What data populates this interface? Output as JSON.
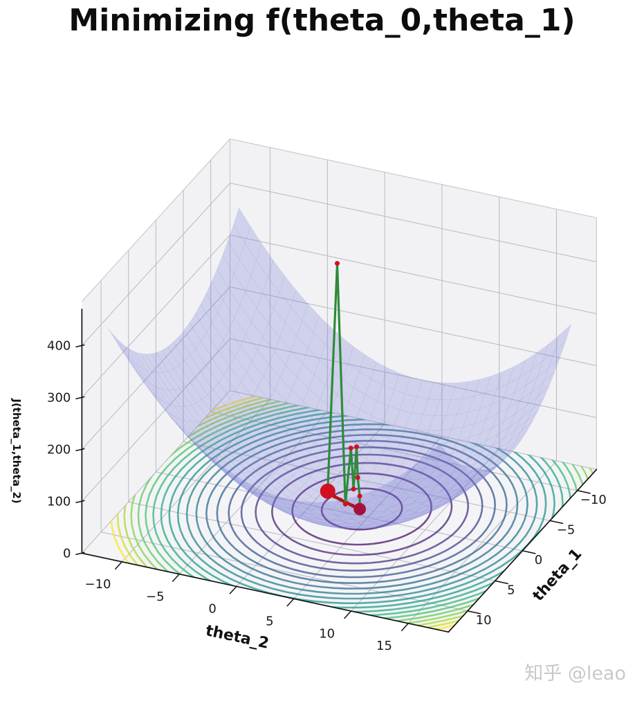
{
  "title": "Minimizing f(theta_0,theta_1)",
  "watermark": "知乎 @leao",
  "chart_data": {
    "type": "3d_surface",
    "title": "Minimizing f(theta_0,theta_1)",
    "xlabel": "theta_2",
    "ylabel": "theta_1",
    "zlabel": "J(theta_1,theta_2)",
    "x_ticks": [
      -10,
      -5,
      0,
      5,
      10,
      15
    ],
    "y_ticks": [
      -10,
      -5,
      0,
      5,
      10
    ],
    "z_ticks": [
      0,
      100,
      200,
      300,
      400
    ],
    "x_range": [
      -13.5,
      18.5
    ],
    "y_range": [
      -13.5,
      13.5
    ],
    "z_range": [
      0,
      485
    ],
    "grid": true,
    "legend": "none",
    "surface": {
      "fitted_function": "J ≈ (theta_2 - 4)^2 + (theta_1 + 1)^2",
      "minimum": {
        "theta_2": 4,
        "theta_1": -1,
        "J": 0
      },
      "domain_theta_2": [
        -12,
        17
      ],
      "domain_theta_1": [
        -12,
        12
      ],
      "mesh_step": 1,
      "fill_color": "#6f72d0",
      "fill_opacity": 0.26
    },
    "contours": {
      "center": {
        "theta_2": 4,
        "theta_1": -1
      },
      "levels": [
        10,
        30,
        50,
        70,
        90,
        110,
        130,
        150,
        170,
        190,
        210,
        230,
        250,
        270,
        290,
        310,
        330,
        350,
        370,
        390
      ],
      "colors": [
        "#440154",
        "#481467",
        "#482576",
        "#453781",
        "#3f4889",
        "#39568c",
        "#33638d",
        "#2e6f8e",
        "#2a7b8e",
        "#25878e",
        "#21938b",
        "#1f9e88",
        "#27aa81",
        "#35b778",
        "#4ac16d",
        "#64cb5e",
        "#84d44b",
        "#a8db34",
        "#cfe11c",
        "#fde725"
      ],
      "line_width": 2.6,
      "opacity": 0.75
    },
    "descent_path": {
      "color": "#2e8b3a",
      "line_width": 3.2,
      "marker_color": "#cf1122",
      "marker_radius": 3.5,
      "start_marker_radius": 11,
      "points": [
        [
          0.8,
          -1.45,
          14
        ],
        [
          1.74,
          -1.22,
          460
        ],
        [
          2.6,
          -0.91,
          4
        ],
        [
          3.01,
          -1.06,
          112
        ],
        [
          3.17,
          -1.21,
          32
        ],
        [
          3.41,
          -1.27,
          114
        ],
        [
          3.47,
          -1.36,
          54
        ],
        [
          3.6,
          -1.44,
          18
        ],
        [
          3.92,
          -0.78,
          2
        ]
      ],
      "converged_cluster": {
        "color": "#a50f3c",
        "dots": [
          [
            3.8,
            -0.92,
            1,
            7
          ],
          [
            4.05,
            -0.7,
            1,
            6
          ],
          [
            3.9,
            -0.85,
            3,
            5
          ],
          [
            3.92,
            -0.78,
            2,
            9
          ]
        ]
      }
    },
    "theta_trajectory": {
      "color": "#b5121c",
      "line_width": 4.5,
      "dot_radius": 2.8,
      "points": [
        [
          0.8,
          -1.45,
          11
        ],
        [
          1.45,
          -1.33,
          8
        ],
        [
          2.05,
          -1.22,
          6
        ],
        [
          2.65,
          -1.1,
          4
        ],
        [
          3.2,
          -1.0,
          2.5
        ],
        [
          3.6,
          -0.9,
          1.5
        ],
        [
          3.92,
          -0.8,
          0.5
        ]
      ]
    },
    "colors": {
      "pane": "#f2f2f5",
      "pane_floor": "#f4f4f7",
      "pane_edge": "#c9c9d2",
      "grid_line": "#bcbcc6",
      "axis_line": "#111111",
      "tick_label": "#1a1a1a"
    }
  }
}
